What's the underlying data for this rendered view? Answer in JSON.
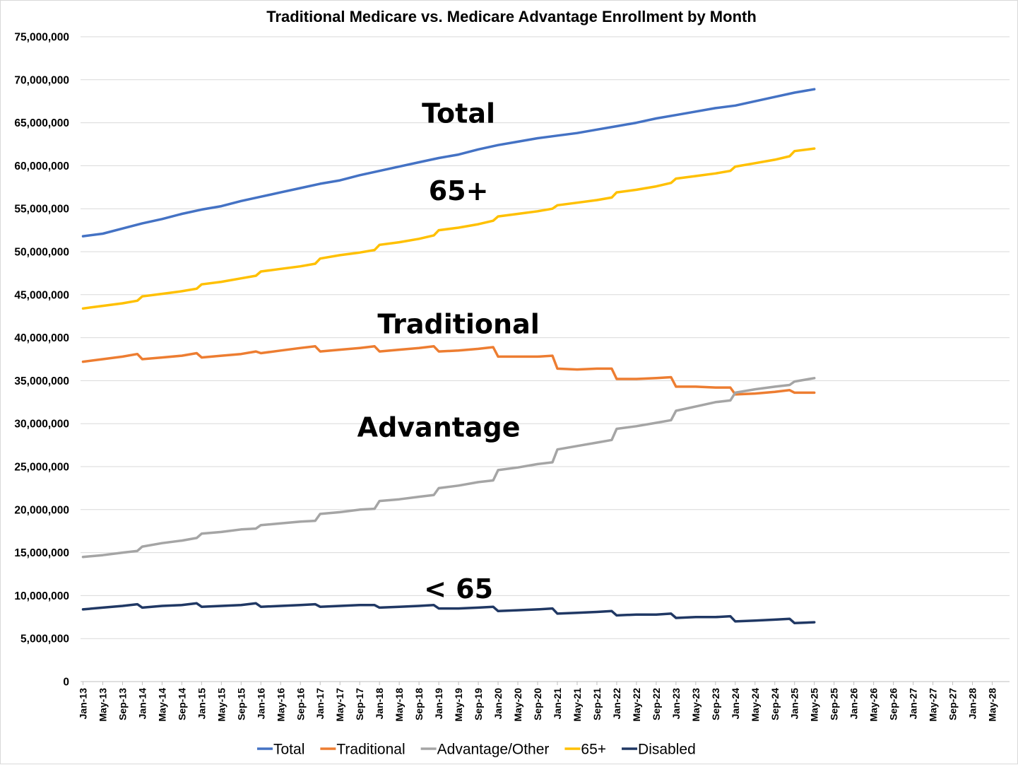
{
  "chart_data": {
    "type": "line",
    "title": "Traditional Medicare vs. Medicare Advantage Enrollment by Month",
    "xlabel": "",
    "ylabel": "",
    "ylim": [
      0,
      75000000
    ],
    "y_ticks": [
      "0",
      "5,000,000",
      "10,000,000",
      "15,000,000",
      "20,000,000",
      "25,000,000",
      "30,000,000",
      "35,000,000",
      "40,000,000",
      "45,000,000",
      "50,000,000",
      "55,000,000",
      "60,000,000",
      "65,000,000",
      "70,000,000",
      "75,000,000"
    ],
    "x_range": [
      "2013-01",
      "2028-08"
    ],
    "x_ticks": [
      "Jan-13",
      "May-13",
      "Sep-13",
      "Jan-14",
      "May-14",
      "Sep-14",
      "Jan-15",
      "May-15",
      "Sep-15",
      "Jan-16",
      "May-16",
      "Sep-16",
      "Jan-17",
      "May-17",
      "Sep-17",
      "Jan-18",
      "May-18",
      "Sep-18",
      "Jan-19",
      "May-19",
      "Sep-19",
      "Jan-20",
      "May-20",
      "Sep-20",
      "Jan-21",
      "May-21",
      "Sep-21",
      "Jan-22",
      "May-22",
      "Sep-22",
      "Jan-23",
      "May-23",
      "Sep-23",
      "Jan-24",
      "May-24",
      "Sep-24",
      "Jan-25",
      "May-25",
      "Sep-25",
      "Jan-26",
      "May-26",
      "Sep-26",
      "Jan-27",
      "May-27",
      "Sep-27",
      "Jan-28",
      "May-28"
    ],
    "grid": "horizontal",
    "legend_position": "bottom",
    "series": [
      {
        "name": "Total",
        "color": "#4472C4",
        "points": [
          [
            "2013-01",
            51800000
          ],
          [
            "2013-05",
            52100000
          ],
          [
            "2013-09",
            52700000
          ],
          [
            "2014-01",
            53300000
          ],
          [
            "2014-05",
            53800000
          ],
          [
            "2014-09",
            54400000
          ],
          [
            "2015-01",
            54900000
          ],
          [
            "2015-05",
            55300000
          ],
          [
            "2015-09",
            55900000
          ],
          [
            "2016-01",
            56400000
          ],
          [
            "2016-05",
            56900000
          ],
          [
            "2016-09",
            57400000
          ],
          [
            "2017-01",
            57900000
          ],
          [
            "2017-05",
            58300000
          ],
          [
            "2017-09",
            58900000
          ],
          [
            "2018-01",
            59400000
          ],
          [
            "2018-05",
            59900000
          ],
          [
            "2018-09",
            60400000
          ],
          [
            "2019-01",
            60900000
          ],
          [
            "2019-05",
            61300000
          ],
          [
            "2019-09",
            61900000
          ],
          [
            "2020-01",
            62400000
          ],
          [
            "2020-05",
            62800000
          ],
          [
            "2020-09",
            63200000
          ],
          [
            "2021-01",
            63500000
          ],
          [
            "2021-05",
            63800000
          ],
          [
            "2021-09",
            64200000
          ],
          [
            "2022-01",
            64600000
          ],
          [
            "2022-05",
            65000000
          ],
          [
            "2022-09",
            65500000
          ],
          [
            "2023-01",
            65900000
          ],
          [
            "2023-05",
            66300000
          ],
          [
            "2023-09",
            66700000
          ],
          [
            "2024-01",
            67000000
          ],
          [
            "2024-05",
            67500000
          ],
          [
            "2024-09",
            68000000
          ],
          [
            "2025-01",
            68500000
          ],
          [
            "2025-05",
            68900000
          ]
        ]
      },
      {
        "name": "Traditional",
        "color": "#ED7D31",
        "points": [
          [
            "2013-01",
            37200000
          ],
          [
            "2013-05",
            37500000
          ],
          [
            "2013-09",
            37800000
          ],
          [
            "2013-12",
            38100000
          ],
          [
            "2014-01",
            37500000
          ],
          [
            "2014-05",
            37700000
          ],
          [
            "2014-09",
            37900000
          ],
          [
            "2014-12",
            38200000
          ],
          [
            "2015-01",
            37700000
          ],
          [
            "2015-05",
            37900000
          ],
          [
            "2015-09",
            38100000
          ],
          [
            "2015-12",
            38400000
          ],
          [
            "2016-01",
            38200000
          ],
          [
            "2016-05",
            38500000
          ],
          [
            "2016-09",
            38800000
          ],
          [
            "2016-12",
            39000000
          ],
          [
            "2017-01",
            38400000
          ],
          [
            "2017-05",
            38600000
          ],
          [
            "2017-09",
            38800000
          ],
          [
            "2017-12",
            39000000
          ],
          [
            "2018-01",
            38400000
          ],
          [
            "2018-05",
            38600000
          ],
          [
            "2018-09",
            38800000
          ],
          [
            "2018-12",
            39000000
          ],
          [
            "2019-01",
            38400000
          ],
          [
            "2019-05",
            38500000
          ],
          [
            "2019-09",
            38700000
          ],
          [
            "2019-12",
            38900000
          ],
          [
            "2020-01",
            37800000
          ],
          [
            "2020-05",
            37800000
          ],
          [
            "2020-09",
            37800000
          ],
          [
            "2020-12",
            37900000
          ],
          [
            "2021-01",
            36400000
          ],
          [
            "2021-05",
            36300000
          ],
          [
            "2021-09",
            36400000
          ],
          [
            "2021-12",
            36400000
          ],
          [
            "2022-01",
            35200000
          ],
          [
            "2022-05",
            35200000
          ],
          [
            "2022-09",
            35300000
          ],
          [
            "2022-12",
            35400000
          ],
          [
            "2023-01",
            34300000
          ],
          [
            "2023-05",
            34300000
          ],
          [
            "2023-09",
            34200000
          ],
          [
            "2023-12",
            34200000
          ],
          [
            "2024-01",
            33400000
          ],
          [
            "2024-05",
            33500000
          ],
          [
            "2024-09",
            33700000
          ],
          [
            "2024-12",
            33900000
          ],
          [
            "2025-01",
            33600000
          ],
          [
            "2025-05",
            33600000
          ]
        ]
      },
      {
        "name": "Advantage/Other",
        "color": "#A5A5A5",
        "points": [
          [
            "2013-01",
            14500000
          ],
          [
            "2013-05",
            14700000
          ],
          [
            "2013-09",
            15000000
          ],
          [
            "2013-12",
            15200000
          ],
          [
            "2014-01",
            15700000
          ],
          [
            "2014-05",
            16100000
          ],
          [
            "2014-09",
            16400000
          ],
          [
            "2014-12",
            16700000
          ],
          [
            "2015-01",
            17200000
          ],
          [
            "2015-05",
            17400000
          ],
          [
            "2015-09",
            17700000
          ],
          [
            "2015-12",
            17800000
          ],
          [
            "2016-01",
            18200000
          ],
          [
            "2016-05",
            18400000
          ],
          [
            "2016-09",
            18600000
          ],
          [
            "2016-12",
            18700000
          ],
          [
            "2017-01",
            19500000
          ],
          [
            "2017-05",
            19700000
          ],
          [
            "2017-09",
            20000000
          ],
          [
            "2017-12",
            20100000
          ],
          [
            "2018-01",
            21000000
          ],
          [
            "2018-05",
            21200000
          ],
          [
            "2018-09",
            21500000
          ],
          [
            "2018-12",
            21700000
          ],
          [
            "2019-01",
            22500000
          ],
          [
            "2019-05",
            22800000
          ],
          [
            "2019-09",
            23200000
          ],
          [
            "2019-12",
            23400000
          ],
          [
            "2020-01",
            24600000
          ],
          [
            "2020-05",
            24900000
          ],
          [
            "2020-09",
            25300000
          ],
          [
            "2020-12",
            25500000
          ],
          [
            "2021-01",
            27000000
          ],
          [
            "2021-05",
            27400000
          ],
          [
            "2021-09",
            27800000
          ],
          [
            "2021-12",
            28100000
          ],
          [
            "2022-01",
            29400000
          ],
          [
            "2022-05",
            29700000
          ],
          [
            "2022-09",
            30100000
          ],
          [
            "2022-12",
            30400000
          ],
          [
            "2023-01",
            31500000
          ],
          [
            "2023-05",
            32000000
          ],
          [
            "2023-09",
            32500000
          ],
          [
            "2023-12",
            32700000
          ],
          [
            "2024-01",
            33600000
          ],
          [
            "2024-05",
            34000000
          ],
          [
            "2024-09",
            34300000
          ],
          [
            "2024-12",
            34500000
          ],
          [
            "2025-01",
            34900000
          ],
          [
            "2025-05",
            35300000
          ]
        ]
      },
      {
        "name": "65+",
        "color": "#FFC000",
        "points": [
          [
            "2013-01",
            43400000
          ],
          [
            "2013-05",
            43700000
          ],
          [
            "2013-09",
            44000000
          ],
          [
            "2013-12",
            44300000
          ],
          [
            "2014-01",
            44800000
          ],
          [
            "2014-05",
            45100000
          ],
          [
            "2014-09",
            45400000
          ],
          [
            "2014-12",
            45700000
          ],
          [
            "2015-01",
            46200000
          ],
          [
            "2015-05",
            46500000
          ],
          [
            "2015-09",
            46900000
          ],
          [
            "2015-12",
            47200000
          ],
          [
            "2016-01",
            47700000
          ],
          [
            "2016-05",
            48000000
          ],
          [
            "2016-09",
            48300000
          ],
          [
            "2016-12",
            48600000
          ],
          [
            "2017-01",
            49200000
          ],
          [
            "2017-05",
            49600000
          ],
          [
            "2017-09",
            49900000
          ],
          [
            "2017-12",
            50200000
          ],
          [
            "2018-01",
            50800000
          ],
          [
            "2018-05",
            51100000
          ],
          [
            "2018-09",
            51500000
          ],
          [
            "2018-12",
            51900000
          ],
          [
            "2019-01",
            52500000
          ],
          [
            "2019-05",
            52800000
          ],
          [
            "2019-09",
            53200000
          ],
          [
            "2019-12",
            53600000
          ],
          [
            "2020-01",
            54100000
          ],
          [
            "2020-05",
            54400000
          ],
          [
            "2020-09",
            54700000
          ],
          [
            "2020-12",
            55000000
          ],
          [
            "2021-01",
            55400000
          ],
          [
            "2021-05",
            55700000
          ],
          [
            "2021-09",
            56000000
          ],
          [
            "2021-12",
            56300000
          ],
          [
            "2022-01",
            56900000
          ],
          [
            "2022-05",
            57200000
          ],
          [
            "2022-09",
            57600000
          ],
          [
            "2022-12",
            58000000
          ],
          [
            "2023-01",
            58500000
          ],
          [
            "2023-05",
            58800000
          ],
          [
            "2023-09",
            59100000
          ],
          [
            "2023-12",
            59400000
          ],
          [
            "2024-01",
            59900000
          ],
          [
            "2024-05",
            60300000
          ],
          [
            "2024-09",
            60700000
          ],
          [
            "2024-12",
            61100000
          ],
          [
            "2025-01",
            61700000
          ],
          [
            "2025-05",
            62000000
          ]
        ]
      },
      {
        "name": "Disabled",
        "color": "#203864",
        "points": [
          [
            "2013-01",
            8400000
          ],
          [
            "2013-05",
            8600000
          ],
          [
            "2013-09",
            8800000
          ],
          [
            "2013-12",
            9000000
          ],
          [
            "2014-01",
            8600000
          ],
          [
            "2014-05",
            8800000
          ],
          [
            "2014-09",
            8900000
          ],
          [
            "2014-12",
            9100000
          ],
          [
            "2015-01",
            8700000
          ],
          [
            "2015-05",
            8800000
          ],
          [
            "2015-09",
            8900000
          ],
          [
            "2015-12",
            9100000
          ],
          [
            "2016-01",
            8700000
          ],
          [
            "2016-05",
            8800000
          ],
          [
            "2016-09",
            8900000
          ],
          [
            "2016-12",
            9000000
          ],
          [
            "2017-01",
            8700000
          ],
          [
            "2017-05",
            8800000
          ],
          [
            "2017-09",
            8900000
          ],
          [
            "2017-12",
            8900000
          ],
          [
            "2018-01",
            8600000
          ],
          [
            "2018-05",
            8700000
          ],
          [
            "2018-09",
            8800000
          ],
          [
            "2018-12",
            8900000
          ],
          [
            "2019-01",
            8500000
          ],
          [
            "2019-05",
            8500000
          ],
          [
            "2019-09",
            8600000
          ],
          [
            "2019-12",
            8700000
          ],
          [
            "2020-01",
            8200000
          ],
          [
            "2020-05",
            8300000
          ],
          [
            "2020-09",
            8400000
          ],
          [
            "2020-12",
            8500000
          ],
          [
            "2021-01",
            7900000
          ],
          [
            "2021-05",
            8000000
          ],
          [
            "2021-09",
            8100000
          ],
          [
            "2021-12",
            8200000
          ],
          [
            "2022-01",
            7700000
          ],
          [
            "2022-05",
            7800000
          ],
          [
            "2022-09",
            7800000
          ],
          [
            "2022-12",
            7900000
          ],
          [
            "2023-01",
            7400000
          ],
          [
            "2023-05",
            7500000
          ],
          [
            "2023-09",
            7500000
          ],
          [
            "2023-12",
            7600000
          ],
          [
            "2024-01",
            7000000
          ],
          [
            "2024-05",
            7100000
          ],
          [
            "2024-09",
            7200000
          ],
          [
            "2024-12",
            7300000
          ],
          [
            "2025-01",
            6800000
          ],
          [
            "2025-05",
            6900000
          ]
        ]
      }
    ],
    "annotations": [
      {
        "text": "Total",
        "at": [
          "2019-05",
          65000000
        ]
      },
      {
        "text": "65+",
        "at": [
          "2019-05",
          56000000
        ]
      },
      {
        "text": "Traditional",
        "at": [
          "2019-05",
          40500000
        ]
      },
      {
        "text": "Advantage",
        "at": [
          "2019-01",
          28500000
        ]
      },
      {
        "text": "< 65",
        "at": [
          "2019-05",
          9700000
        ]
      }
    ]
  }
}
